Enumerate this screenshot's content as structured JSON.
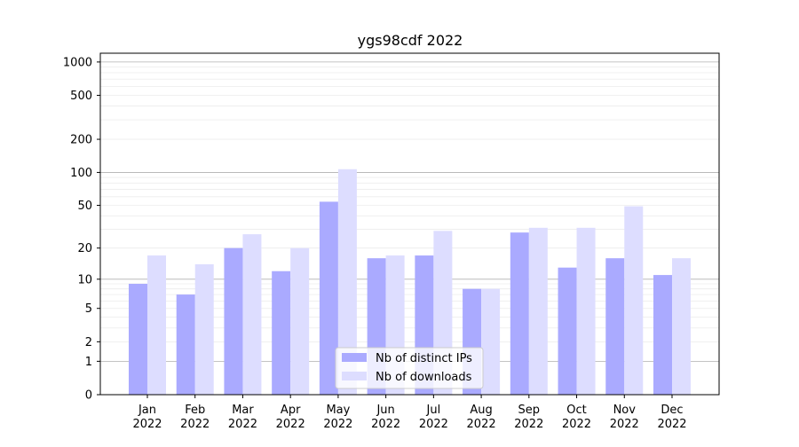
{
  "chart_data": {
    "type": "bar",
    "title": "ygs98cdf 2022",
    "xlabel": "",
    "ylabel": "",
    "yscale": "log1p",
    "ylim": [
      0,
      1200
    ],
    "yticks": [
      0,
      1,
      2,
      5,
      10,
      20,
      50,
      100,
      200,
      500,
      1000
    ],
    "ytick_labels": [
      "0",
      "1",
      "2",
      "5",
      "10",
      "20",
      "50",
      "100",
      "200",
      "500",
      "1000"
    ],
    "categories": [
      "Jan\n2022",
      "Feb\n2022",
      "Mar\n2022",
      "Apr\n2022",
      "May\n2022",
      "Jun\n2022",
      "Jul\n2022",
      "Aug\n2022",
      "Sep\n2022",
      "Oct\n2022",
      "Nov\n2022",
      "Dec\n2022"
    ],
    "series": [
      {
        "name": "Nb of distinct IPs",
        "color": "#aaaaff",
        "values": [
          9,
          7,
          20,
          12,
          54,
          16,
          17,
          8,
          28,
          13,
          16,
          11
        ]
      },
      {
        "name": "Nb of downloads",
        "color": "#ddddff",
        "values": [
          17,
          14,
          27,
          20,
          107,
          17,
          29,
          8,
          31,
          31,
          49,
          16
        ]
      }
    ],
    "grid": true,
    "legend_position": "bottom-center"
  }
}
